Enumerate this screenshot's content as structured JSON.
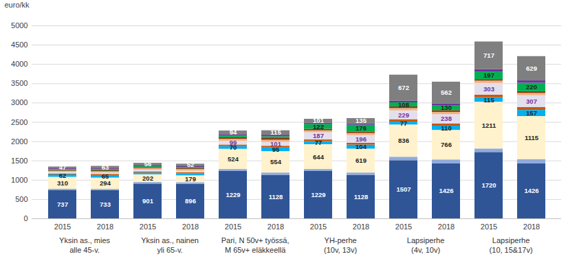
{
  "chart_data": {
    "type": "bar",
    "stacked": true,
    "data_labels": true,
    "grid": true,
    "y_label": "euro/kk",
    "categories": [
      "2015",
      "2018",
      "2015",
      "2018",
      "2015",
      "2018",
      "2015",
      "2018",
      "2015",
      "2018",
      "2015",
      "2018"
    ],
    "groups": [
      "Yksin as., mies\nalle 45-v.",
      "Yksin as., nainen\nyli 65-v.",
      "Pari, N 50v+ työssä,\nM 65v+ eläkkeellä",
      "YH-perhe\n(10v, 13v)",
      "Lapsiperhe\n(4v, 10v)",
      "Lapsiperhe\n(10, 15&17v)"
    ],
    "ylim": [
      0,
      5000
    ],
    "yticks": [
      0,
      500,
      1000,
      1500,
      2000,
      2500,
      3000,
      3500,
      4000,
      4500,
      5000
    ],
    "series": [
      {
        "color": "#2f5597",
        "values": [
          737,
          733,
          901,
          896,
          1229,
          1128,
          1229,
          1128,
          1507,
          1426,
          1720,
          1426
        ],
        "value_labels": [
          "737",
          "733",
          "901",
          "896",
          "1229",
          "1128",
          "1229",
          "1128",
          "1507",
          "1426",
          "1720",
          "1426"
        ]
      },
      {
        "color": "#8faadc",
        "values": [
          30,
          30,
          40,
          40,
          50,
          60,
          50,
          60,
          90,
          100,
          90,
          110
        ]
      },
      {
        "color": "#fff2cc",
        "values": [
          310,
          294,
          202,
          179,
          524,
          554,
          644,
          619,
          836,
          766,
          1211,
          1115
        ],
        "value_labels": [
          "310",
          "294",
          "202",
          "179",
          "524",
          "554",
          "644",
          "619",
          "836",
          "766",
          "1211",
          "1115"
        ]
      },
      {
        "color": "#00b0f0",
        "values": [
          62,
          65,
          45,
          50,
          70,
          95,
          77,
          104,
          77,
          110,
          115,
          157
        ],
        "value_labels": [
          "62",
          "65",
          null,
          null,
          "70",
          "95",
          "77",
          "104",
          "77",
          "110",
          "115",
          "157"
        ]
      },
      {
        "color": "#c55a11",
        "values": [
          25,
          30,
          30,
          30,
          40,
          45,
          45,
          50,
          60,
          60,
          70,
          75
        ]
      },
      {
        "color": "#e4dfec",
        "values": [
          38,
          40,
          45,
          40,
          99,
          101,
          187,
          196,
          229,
          238,
          303,
          307
        ],
        "value_labels": [
          null,
          null,
          null,
          null,
          "99",
          "101",
          "187",
          "196",
          "229",
          "238",
          "303",
          "307"
        ]
      },
      {
        "color": "#f4b183",
        "values": [
          30,
          30,
          40,
          45,
          50,
          55,
          50,
          55,
          60,
          60,
          60,
          60
        ]
      },
      {
        "color": "#843c0c",
        "values": [
          20,
          25,
          25,
          25,
          40,
          45,
          40,
          40,
          40,
          45,
          40,
          45
        ]
      },
      {
        "color": "#00b050",
        "values": [
          20,
          25,
          25,
          30,
          40,
          45,
          122,
          176,
          108,
          130,
          197,
          220
        ],
        "value_labels": [
          null,
          null,
          null,
          null,
          null,
          null,
          "122",
          "176",
          "108",
          "130",
          "197",
          "220"
        ]
      },
      {
        "color": "#7030a0",
        "values": [
          25,
          25,
          30,
          30,
          40,
          40,
          35,
          35,
          45,
          45,
          60,
          60
        ]
      },
      {
        "color": "#7f7f7f",
        "values": [
          47,
          63,
          56,
          52,
          94,
          115,
          101,
          135,
          672,
          562,
          717,
          629
        ],
        "value_labels": [
          "47",
          "63",
          "56",
          "52",
          "94",
          "115",
          "101",
          "135",
          "672",
          "562",
          "717",
          "629"
        ]
      }
    ]
  }
}
